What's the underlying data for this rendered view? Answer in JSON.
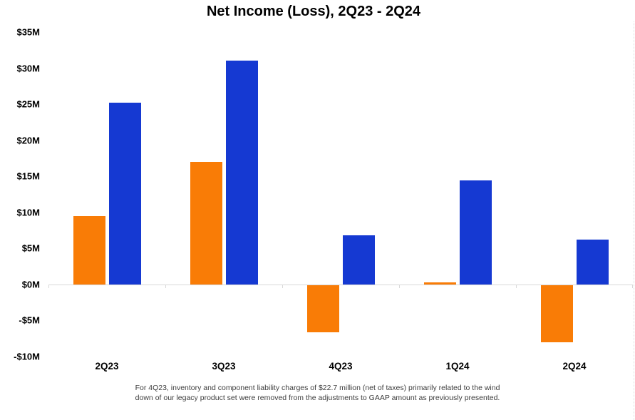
{
  "chart": {
    "title": "Net Income (Loss), 2Q23 - 2Q24"
  },
  "footnote": {
    "line1": "For 4Q23, inventory and component liability charges of $22.7 million (net of taxes) primarily related to the wind",
    "line2": "down of our legacy product set were removed from the adjustments to GAAP amount as previously presented."
  },
  "chart_data": {
    "type": "bar",
    "title": "Net Income (Loss), 2Q23 - 2Q24",
    "categories": [
      "2Q23",
      "3Q23",
      "4Q23",
      "1Q24",
      "2Q24"
    ],
    "series": [
      {
        "color_name": "orange",
        "color": "#F97C06",
        "values": [
          9.5,
          17.0,
          -6.5,
          0.3,
          -7.9
        ]
      },
      {
        "color_name": "blue",
        "color": "#1539D2",
        "values": [
          25.2,
          31.0,
          6.8,
          14.4,
          6.2
        ]
      }
    ],
    "unit": "$M",
    "ylim": [
      -10,
      35
    ],
    "ytick_step": 5,
    "yticks": [
      {
        "label": "$35M",
        "value": 35
      },
      {
        "label": "$30M",
        "value": 30
      },
      {
        "label": "$25M",
        "value": 25
      },
      {
        "label": "$20M",
        "value": 20
      },
      {
        "label": "$15M",
        "value": 15
      },
      {
        "label": "$10M",
        "value": 10
      },
      {
        "label": "$5M",
        "value": 5
      },
      {
        "label": "$0M",
        "value": 0
      },
      {
        "label": "-$5M",
        "value": -5
      },
      {
        "label": "-$10M",
        "value": -10
      }
    ],
    "grid": false,
    "legend": false,
    "axis_color": "#d9d9d9",
    "footnote": "For 4Q23, inventory and component liability charges of $22.7 million (net of taxes) primarily related to the wind down of our legacy product set were removed from the adjustments to GAAP amount as previously presented."
  }
}
